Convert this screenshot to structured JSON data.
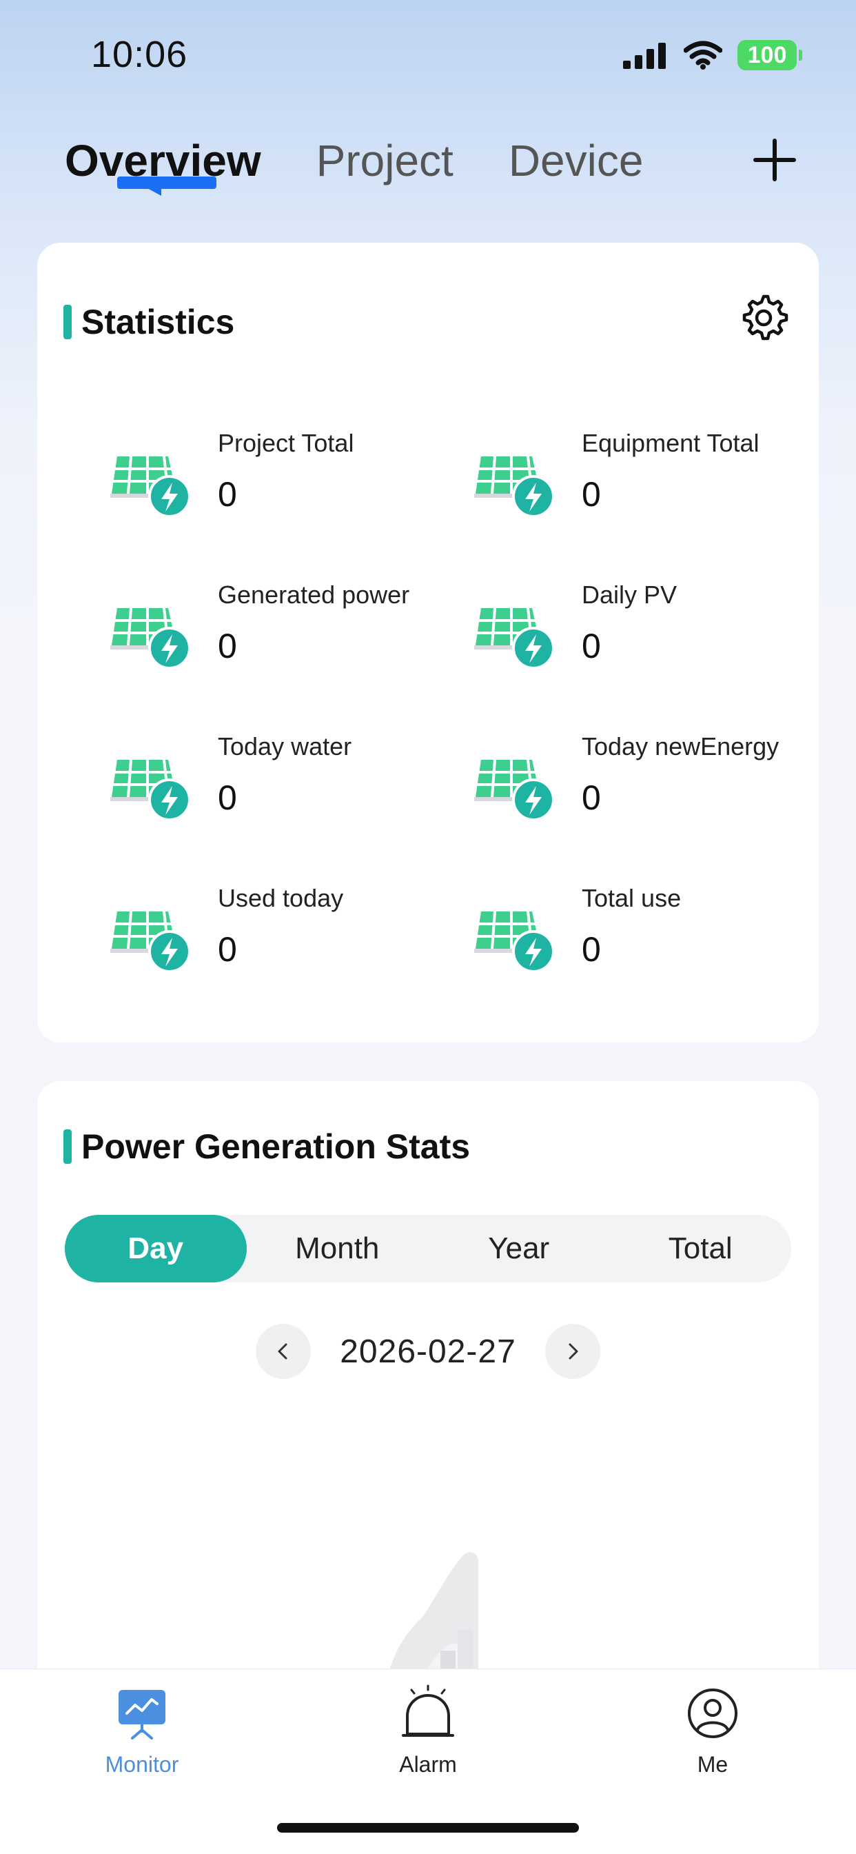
{
  "status_bar": {
    "time": "10:06",
    "battery": "100"
  },
  "top_tabs": [
    {
      "label": "Overview",
      "active": true
    },
    {
      "label": "Project",
      "active": false
    },
    {
      "label": "Device",
      "active": false
    }
  ],
  "statistics": {
    "title": "Statistics",
    "items": [
      {
        "label": "Project Total",
        "value": "0"
      },
      {
        "label": "Equipment Total",
        "value": "0"
      },
      {
        "label": "Generated power",
        "value": "0"
      },
      {
        "label": "Daily PV",
        "value": "0"
      },
      {
        "label": "Today water",
        "value": "0"
      },
      {
        "label": "Today newEnergy",
        "value": "0"
      },
      {
        "label": "Used today",
        "value": "0"
      },
      {
        "label": "Total use",
        "value": "0"
      }
    ]
  },
  "power_stats": {
    "title": "Power Generation Stats",
    "periods": [
      {
        "label": "Day",
        "active": true
      },
      {
        "label": "Month",
        "active": false
      },
      {
        "label": "Year",
        "active": false
      },
      {
        "label": "Total",
        "active": false
      }
    ],
    "date": "2026-02-27"
  },
  "bottom_nav": [
    {
      "label": "Monitor",
      "icon": "monitor-icon",
      "active": true
    },
    {
      "label": "Alarm",
      "icon": "alarm-bell-icon",
      "active": false
    },
    {
      "label": "Me",
      "icon": "user-profile-icon",
      "active": false
    }
  ],
  "colors": {
    "accent": "#1eb3a3",
    "tab_indicator": "#1b6ff2",
    "nav_active": "#4a8fe0"
  }
}
